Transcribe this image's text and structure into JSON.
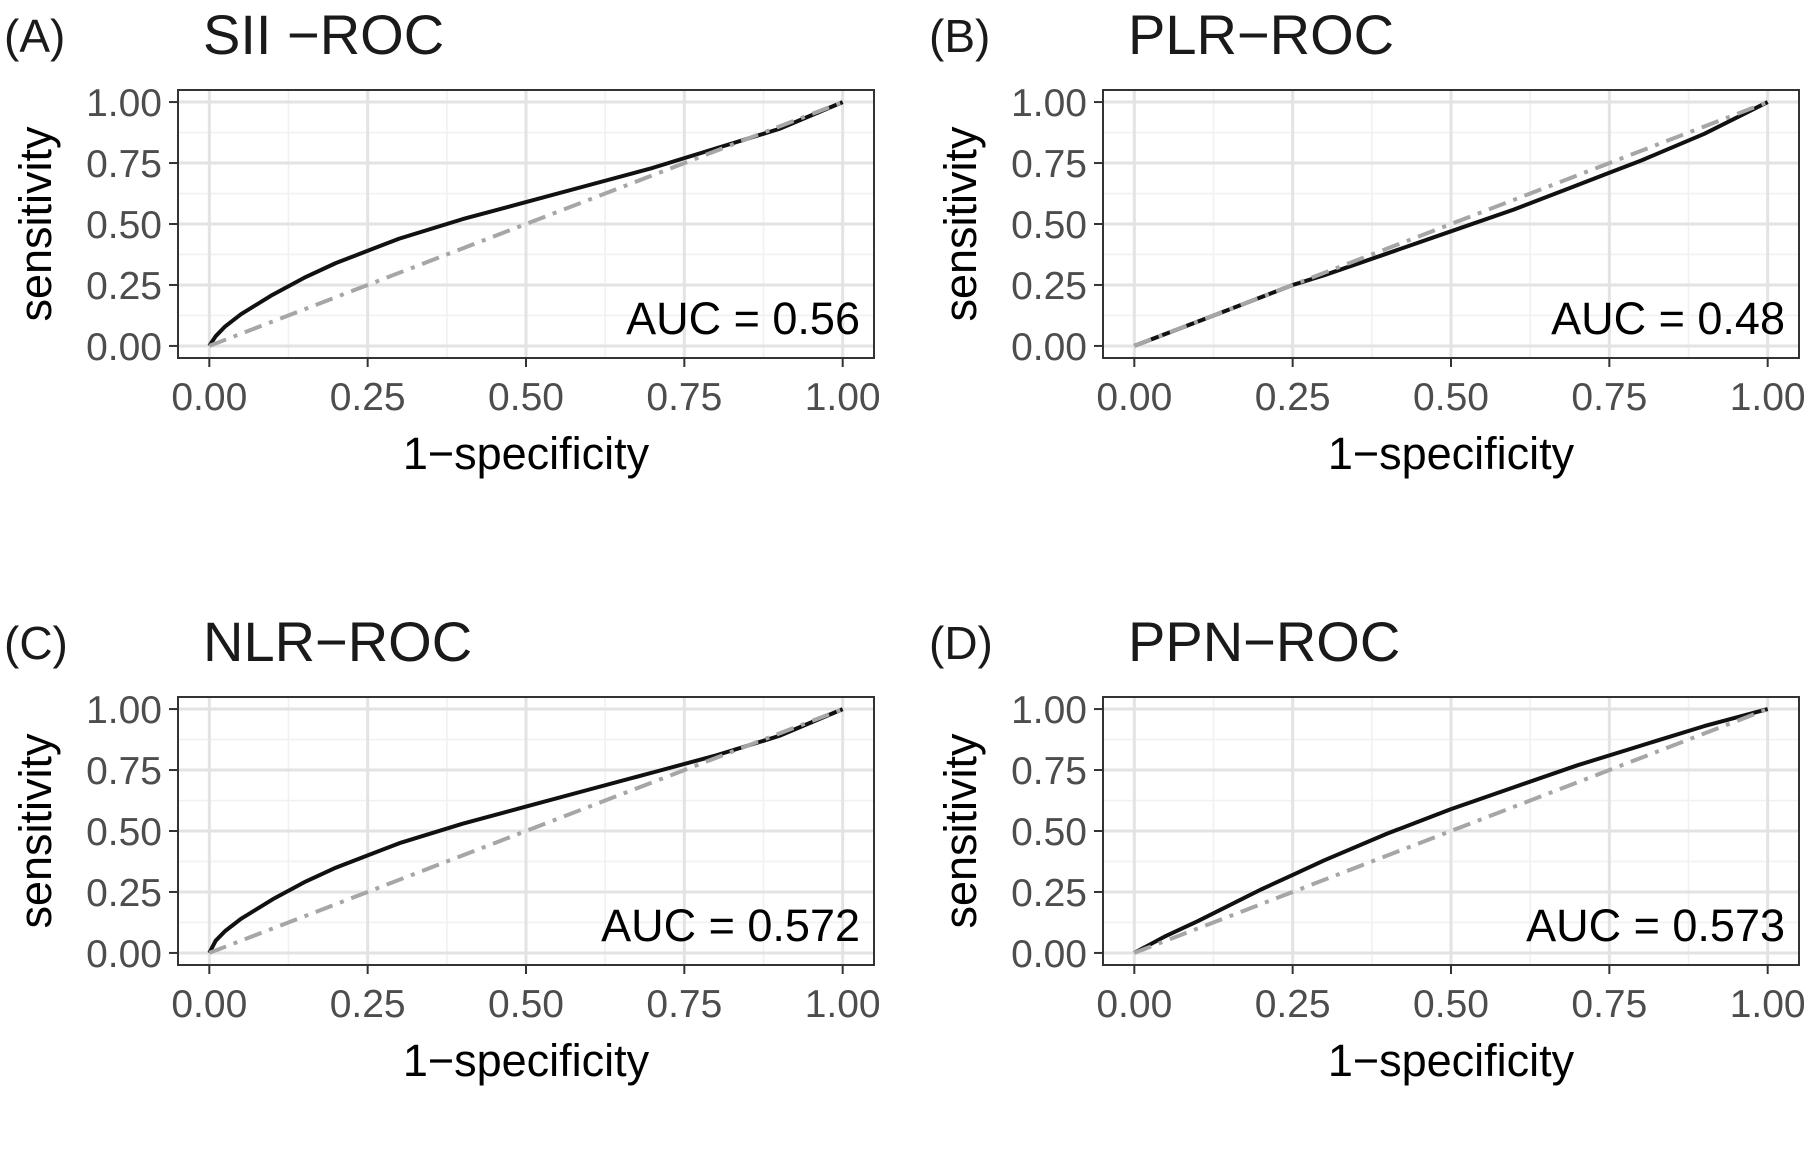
{
  "chart_data": [
    {
      "type": "line",
      "panel_label": "(A)",
      "title": "SII −ROC",
      "xlabel": "1−specificity",
      "ylabel": "sensitivity",
      "xlim": [
        0,
        1
      ],
      "ylim": [
        0,
        1
      ],
      "x_ticks": [
        "0.00",
        "0.25",
        "0.50",
        "0.75",
        "1.00"
      ],
      "y_ticks": [
        "0.00",
        "0.25",
        "0.50",
        "0.75",
        "1.00"
      ],
      "grid": true,
      "annotation": "AUC =  0.56",
      "auc": 0.56,
      "series": [
        {
          "style": "solid",
          "color": "#111111",
          "x": [
            0,
            0.01,
            0.025,
            0.05,
            0.1,
            0.15,
            0.2,
            0.25,
            0.3,
            0.4,
            0.5,
            0.6,
            0.7,
            0.8,
            0.9,
            1.0
          ],
          "y": [
            0,
            0.04,
            0.08,
            0.13,
            0.21,
            0.28,
            0.34,
            0.39,
            0.44,
            0.52,
            0.59,
            0.66,
            0.73,
            0.81,
            0.89,
            1.0
          ]
        },
        {
          "style": "dashdot",
          "color": "#a6a6a6",
          "x": [
            0,
            1
          ],
          "y": [
            0,
            1
          ]
        }
      ]
    },
    {
      "type": "line",
      "panel_label": "(B)",
      "title": "PLR−ROC",
      "xlabel": "1−specificity",
      "ylabel": "sensitivity",
      "xlim": [
        0,
        1
      ],
      "ylim": [
        0,
        1
      ],
      "x_ticks": [
        "0.00",
        "0.25",
        "0.50",
        "0.75",
        "1.00"
      ],
      "y_ticks": [
        "0.00",
        "0.25",
        "0.50",
        "0.75",
        "1.00"
      ],
      "grid": true,
      "annotation": "AUC =  0.48",
      "auc": 0.48,
      "series": [
        {
          "style": "solid",
          "color": "#111111",
          "x": [
            0,
            0.05,
            0.1,
            0.2,
            0.25,
            0.3,
            0.4,
            0.5,
            0.6,
            0.7,
            0.75,
            0.8,
            0.9,
            1.0
          ],
          "y": [
            0,
            0.05,
            0.1,
            0.2,
            0.25,
            0.29,
            0.38,
            0.47,
            0.56,
            0.66,
            0.71,
            0.76,
            0.87,
            1.0
          ]
        },
        {
          "style": "dashdot",
          "color": "#a6a6a6",
          "x": [
            0,
            1
          ],
          "y": [
            0,
            1
          ]
        }
      ]
    },
    {
      "type": "line",
      "panel_label": "(C)",
      "title": "NLR−ROC",
      "xlabel": "1−specificity",
      "ylabel": "sensitivity",
      "xlim": [
        0,
        1
      ],
      "ylim": [
        0,
        1
      ],
      "x_ticks": [
        "0.00",
        "0.25",
        "0.50",
        "0.75",
        "1.00"
      ],
      "y_ticks": [
        "0.00",
        "0.25",
        "0.50",
        "0.75",
        "1.00"
      ],
      "grid": true,
      "annotation": "AUC =  0.572",
      "auc": 0.572,
      "series": [
        {
          "style": "solid",
          "color": "#111111",
          "x": [
            0,
            0.01,
            0.025,
            0.05,
            0.1,
            0.15,
            0.2,
            0.25,
            0.3,
            0.4,
            0.5,
            0.6,
            0.7,
            0.8,
            0.9,
            1.0
          ],
          "y": [
            0,
            0.05,
            0.09,
            0.14,
            0.22,
            0.29,
            0.35,
            0.4,
            0.45,
            0.53,
            0.6,
            0.67,
            0.74,
            0.81,
            0.89,
            1.0
          ]
        },
        {
          "style": "dashdot",
          "color": "#a6a6a6",
          "x": [
            0,
            1
          ],
          "y": [
            0,
            1
          ]
        }
      ]
    },
    {
      "type": "line",
      "panel_label": "(D)",
      "title": "PPN−ROC",
      "xlabel": "1−specificity",
      "ylabel": "sensitivity",
      "xlim": [
        0,
        1
      ],
      "ylim": [
        0,
        1
      ],
      "x_ticks": [
        "0.00",
        "0.25",
        "0.50",
        "0.75",
        "1.00"
      ],
      "y_ticks": [
        "0.00",
        "0.25",
        "0.50",
        "0.75",
        "1.00"
      ],
      "grid": true,
      "annotation": "AUC =  0.573",
      "auc": 0.573,
      "series": [
        {
          "style": "solid",
          "color": "#111111",
          "x": [
            0,
            0.05,
            0.1,
            0.2,
            0.25,
            0.3,
            0.4,
            0.5,
            0.6,
            0.7,
            0.8,
            0.9,
            1.0
          ],
          "y": [
            0,
            0.07,
            0.13,
            0.26,
            0.32,
            0.38,
            0.49,
            0.59,
            0.68,
            0.77,
            0.85,
            0.93,
            1.0
          ]
        },
        {
          "style": "dashdot",
          "color": "#a6a6a6",
          "x": [
            0,
            1
          ],
          "y": [
            0,
            1
          ]
        }
      ]
    }
  ]
}
